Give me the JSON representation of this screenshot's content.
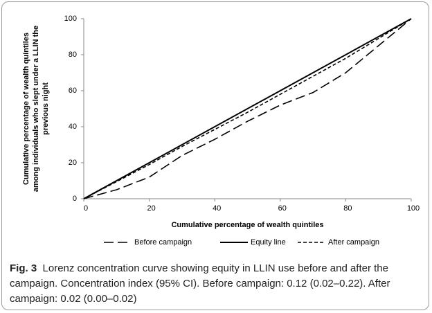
{
  "chart_data": {
    "type": "line",
    "xlabel": "Cumulative percentage of wealth quintiles",
    "ylabel_lines": [
      "Cumulative percentage of wealth quintiles",
      "among individuals who slept under a LLIN the",
      "previous night"
    ],
    "xlim": [
      0,
      100
    ],
    "ylim": [
      0,
      100
    ],
    "xticks": [
      0,
      20,
      40,
      60,
      80,
      100
    ],
    "yticks": [
      0,
      20,
      40,
      60,
      80,
      100
    ],
    "legend": "bottom",
    "series": [
      {
        "name": "Before campaign",
        "color": "#000000",
        "dash": "long",
        "x": [
          0,
          10,
          20,
          30,
          40,
          50,
          60,
          70,
          80,
          90,
          100
        ],
        "values": [
          0,
          5,
          12,
          24,
          33,
          43,
          52,
          59,
          70,
          85,
          100
        ]
      },
      {
        "name": "Equity line",
        "color": "#000000",
        "dash": "solid",
        "x": [
          0,
          100
        ],
        "values": [
          0,
          100
        ]
      },
      {
        "name": "After campaign",
        "color": "#000000",
        "dash": "short",
        "x": [
          0,
          10,
          20,
          30,
          40,
          50,
          60,
          70,
          80,
          90,
          100
        ],
        "values": [
          0,
          9.5,
          19,
          29,
          38.5,
          48,
          58,
          68,
          78,
          89,
          100
        ]
      }
    ]
  },
  "caption": {
    "label": "Fig. 3",
    "text": "Lorenz concentration curve showing equity in LLIN use before and after the campaign. Concentration index (95% CI). Before campaign: 0.12 (0.02–0.22). After campaign: 0.02 (0.00–0.02)"
  }
}
